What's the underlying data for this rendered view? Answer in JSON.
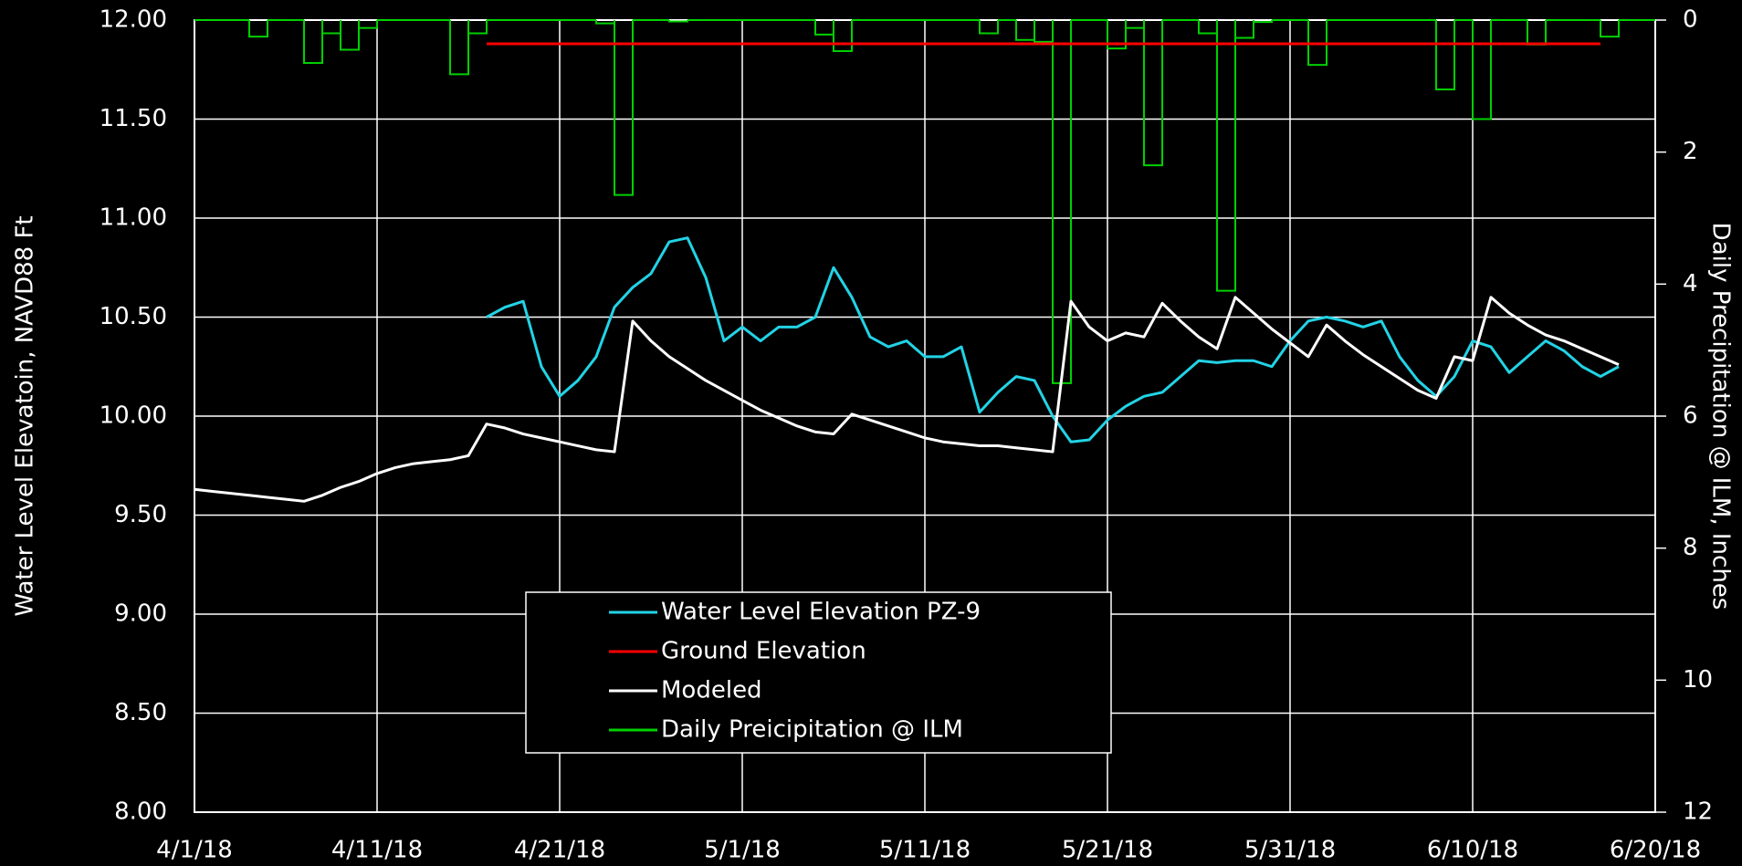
{
  "chart_data": {
    "type": "line",
    "y_label": "Water Level Elevatoin, NAVD88 Ft",
    "y2_label": "Daily Precipitation @ ILM, Inches",
    "grid": true,
    "legend": "bottom-center",
    "xlim": [
      "2018-04-01",
      "2018-06-20"
    ],
    "xticks": [
      {
        "value": "2018-04-01",
        "label": "4/1/18"
      },
      {
        "value": "2018-04-11",
        "label": "4/11/18"
      },
      {
        "value": "2018-04-21",
        "label": "4/21/18"
      },
      {
        "value": "2018-05-01",
        "label": "5/1/18"
      },
      {
        "value": "2018-05-11",
        "label": "5/11/18"
      },
      {
        "value": "2018-05-21",
        "label": "5/21/18"
      },
      {
        "value": "2018-05-31",
        "label": "5/31/18"
      },
      {
        "value": "2018-06-10",
        "label": "6/10/18"
      },
      {
        "value": "2018-06-20",
        "label": "6/20/18"
      }
    ],
    "ylim": [
      8,
      12
    ],
    "yticks": [
      {
        "value": 8,
        "label": "8.00"
      },
      {
        "value": 8.5,
        "label": "8.50"
      },
      {
        "value": 9,
        "label": "9.00"
      },
      {
        "value": 9.5,
        "label": "9.50"
      },
      {
        "value": 10,
        "label": "10.00"
      },
      {
        "value": 10.5,
        "label": "10.50"
      },
      {
        "value": 11,
        "label": "11.00"
      },
      {
        "value": 11.5,
        "label": "11.50"
      },
      {
        "value": 12,
        "label": "12.00"
      }
    ],
    "y2lim": [
      12,
      0
    ],
    "y2ticks": [
      0,
      2,
      4,
      6,
      8,
      10,
      12
    ],
    "series": [
      {
        "name": "Water Level Elevation PZ-9",
        "color": "#22d3e6",
        "x": [
          "2018-04-17",
          "2018-04-18",
          "2018-04-19",
          "2018-04-20",
          "2018-04-21",
          "2018-04-22",
          "2018-04-23",
          "2018-04-24",
          "2018-04-25",
          "2018-04-26",
          "2018-04-27",
          "2018-04-28",
          "2018-04-29",
          "2018-04-30",
          "2018-05-01",
          "2018-05-02",
          "2018-05-03",
          "2018-05-04",
          "2018-05-05",
          "2018-05-06",
          "2018-05-07",
          "2018-05-08",
          "2018-05-09",
          "2018-05-10",
          "2018-05-11",
          "2018-05-12",
          "2018-05-13",
          "2018-05-14",
          "2018-05-15",
          "2018-05-16",
          "2018-05-17",
          "2018-05-18",
          "2018-05-19",
          "2018-05-20",
          "2018-05-21",
          "2018-05-22",
          "2018-05-23",
          "2018-05-24",
          "2018-05-25",
          "2018-05-26",
          "2018-05-27",
          "2018-05-28",
          "2018-05-29",
          "2018-05-30",
          "2018-05-31",
          "2018-06-01",
          "2018-06-02",
          "2018-06-03",
          "2018-06-04",
          "2018-06-05",
          "2018-06-06",
          "2018-06-07",
          "2018-06-08",
          "2018-06-09",
          "2018-06-10",
          "2018-06-11",
          "2018-06-12",
          "2018-06-13",
          "2018-06-14",
          "2018-06-15",
          "2018-06-16",
          "2018-06-17",
          "2018-06-18"
        ],
        "values": [
          10.5,
          10.55,
          10.58,
          10.25,
          10.1,
          10.18,
          10.3,
          10.55,
          10.65,
          10.72,
          10.88,
          10.9,
          10.7,
          10.38,
          10.45,
          10.38,
          10.45,
          10.45,
          10.5,
          10.75,
          10.6,
          10.4,
          10.35,
          10.38,
          10.3,
          10.3,
          10.35,
          10.02,
          10.12,
          10.2,
          10.18,
          10.0,
          9.87,
          9.88,
          9.98,
          10.05,
          10.1,
          10.12,
          10.2,
          10.28,
          10.27,
          10.28,
          10.28,
          10.25,
          10.38,
          10.48,
          10.5,
          10.48,
          10.45,
          10.48,
          10.3,
          10.18,
          10.1,
          10.2,
          10.38,
          10.35,
          10.22,
          10.3,
          10.38,
          10.33,
          10.25,
          10.2,
          10.25
        ]
      },
      {
        "name": "Ground Elevation",
        "color": "#ff0000",
        "x": [
          "2018-04-17",
          "2018-06-17"
        ],
        "values": [
          11.88,
          11.88
        ]
      },
      {
        "name": "Modeled",
        "color": "#ffffff",
        "x": [
          "2018-04-01",
          "2018-04-02",
          "2018-04-03",
          "2018-04-04",
          "2018-04-05",
          "2018-04-06",
          "2018-04-07",
          "2018-04-08",
          "2018-04-09",
          "2018-04-10",
          "2018-04-11",
          "2018-04-12",
          "2018-04-13",
          "2018-04-14",
          "2018-04-15",
          "2018-04-16",
          "2018-04-17",
          "2018-04-18",
          "2018-04-19",
          "2018-04-20",
          "2018-04-21",
          "2018-04-22",
          "2018-04-23",
          "2018-04-24",
          "2018-04-25",
          "2018-04-26",
          "2018-04-27",
          "2018-04-28",
          "2018-04-29",
          "2018-04-30",
          "2018-05-01",
          "2018-05-02",
          "2018-05-03",
          "2018-05-04",
          "2018-05-05",
          "2018-05-06",
          "2018-05-07",
          "2018-05-08",
          "2018-05-09",
          "2018-05-10",
          "2018-05-11",
          "2018-05-12",
          "2018-05-13",
          "2018-05-14",
          "2018-05-15",
          "2018-05-16",
          "2018-05-17",
          "2018-05-18",
          "2018-05-19",
          "2018-05-20",
          "2018-05-21",
          "2018-05-22",
          "2018-05-23",
          "2018-05-24",
          "2018-05-25",
          "2018-05-26",
          "2018-05-27",
          "2018-05-28",
          "2018-05-29",
          "2018-05-30",
          "2018-05-31",
          "2018-06-01",
          "2018-06-02",
          "2018-06-03",
          "2018-06-04",
          "2018-06-05",
          "2018-06-06",
          "2018-06-07",
          "2018-06-08",
          "2018-06-09",
          "2018-06-10",
          "2018-06-11",
          "2018-06-12",
          "2018-06-13",
          "2018-06-14",
          "2018-06-15",
          "2018-06-16",
          "2018-06-17",
          "2018-06-18"
        ],
        "values": [
          9.63,
          9.62,
          9.61,
          9.6,
          9.59,
          9.58,
          9.57,
          9.6,
          9.64,
          9.67,
          9.71,
          9.74,
          9.76,
          9.77,
          9.78,
          9.8,
          9.96,
          9.94,
          9.91,
          9.89,
          9.87,
          9.85,
          9.83,
          9.82,
          10.48,
          10.38,
          10.3,
          10.24,
          10.18,
          10.13,
          10.08,
          10.03,
          9.99,
          9.95,
          9.92,
          9.91,
          10.01,
          9.98,
          9.95,
          9.92,
          9.89,
          9.87,
          9.86,
          9.85,
          9.85,
          9.84,
          9.83,
          9.82,
          10.58,
          10.45,
          10.38,
          10.42,
          10.4,
          10.57,
          10.48,
          10.4,
          10.34,
          10.6,
          10.52,
          10.44,
          10.37,
          10.3,
          10.46,
          10.38,
          10.31,
          10.25,
          10.19,
          10.13,
          10.09,
          10.3,
          10.28,
          10.6,
          10.52,
          10.46,
          10.41,
          10.38,
          10.34,
          10.3,
          10.26
        ]
      },
      {
        "name": "Daily Preicipitation @ ILM",
        "color": "#00d000",
        "axis": "y2",
        "style": "step",
        "x": [
          "2018-04-01",
          "2018-04-02",
          "2018-04-03",
          "2018-04-04",
          "2018-04-05",
          "2018-04-06",
          "2018-04-07",
          "2018-04-08",
          "2018-04-09",
          "2018-04-10",
          "2018-04-11",
          "2018-04-12",
          "2018-04-13",
          "2018-04-14",
          "2018-04-15",
          "2018-04-16",
          "2018-04-17",
          "2018-04-18",
          "2018-04-19",
          "2018-04-20",
          "2018-04-21",
          "2018-04-22",
          "2018-04-23",
          "2018-04-24",
          "2018-04-25",
          "2018-04-26",
          "2018-04-27",
          "2018-04-28",
          "2018-04-29",
          "2018-04-30",
          "2018-05-01",
          "2018-05-02",
          "2018-05-03",
          "2018-05-04",
          "2018-05-05",
          "2018-05-06",
          "2018-05-07",
          "2018-05-08",
          "2018-05-09",
          "2018-05-10",
          "2018-05-11",
          "2018-05-12",
          "2018-05-13",
          "2018-05-14",
          "2018-05-15",
          "2018-05-16",
          "2018-05-17",
          "2018-05-18",
          "2018-05-19",
          "2018-05-20",
          "2018-05-21",
          "2018-05-22",
          "2018-05-23",
          "2018-05-24",
          "2018-05-25",
          "2018-05-26",
          "2018-05-27",
          "2018-05-28",
          "2018-05-29",
          "2018-05-30",
          "2018-05-31",
          "2018-06-01",
          "2018-06-02",
          "2018-06-03",
          "2018-06-04",
          "2018-06-05",
          "2018-06-06",
          "2018-06-07",
          "2018-06-08",
          "2018-06-09",
          "2018-06-10",
          "2018-06-11",
          "2018-06-12",
          "2018-06-13",
          "2018-06-14",
          "2018-06-15",
          "2018-06-16",
          "2018-06-17",
          "2018-06-18",
          "2018-06-19"
        ],
        "values": [
          0,
          0,
          0,
          0.25,
          0,
          0,
          0.65,
          0.2,
          0.45,
          0.12,
          0,
          0,
          0,
          0,
          0.82,
          0.2,
          0,
          0,
          0,
          0,
          0,
          0,
          0.05,
          2.65,
          0,
          0,
          0.02,
          0,
          0,
          0,
          0,
          0,
          0,
          0,
          0.22,
          0.47,
          0,
          0,
          0,
          0,
          0,
          0,
          0,
          0.2,
          0,
          0.3,
          0.33,
          5.5,
          0,
          0,
          0.43,
          0.12,
          2.2,
          0,
          0,
          0.2,
          4.1,
          0.27,
          0.03,
          0,
          0,
          0.68,
          0,
          0,
          0,
          0,
          0,
          0,
          1.05,
          0,
          1.5,
          0,
          0,
          0.37,
          0,
          0,
          0,
          0.25,
          0,
          0
        ]
      }
    ]
  }
}
